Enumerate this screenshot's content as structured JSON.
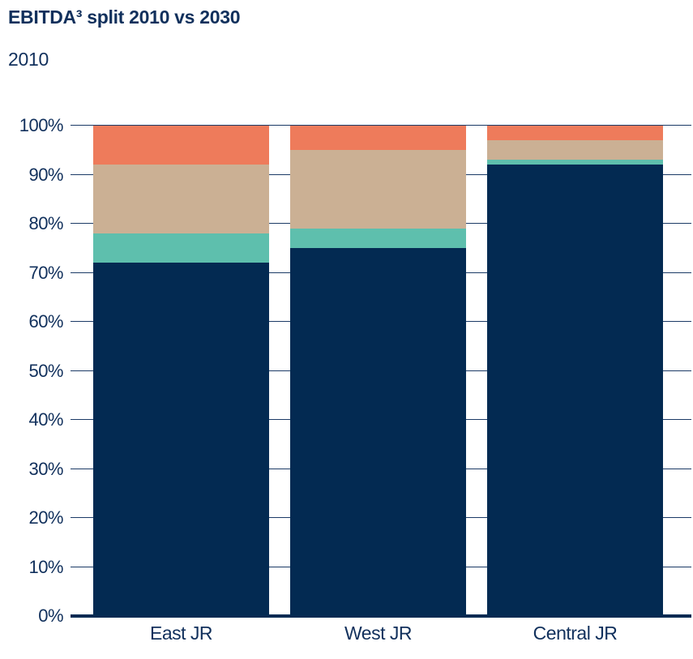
{
  "header": {
    "title": "EBITDA³ split 2010 vs 2030",
    "subtitle": "2010"
  },
  "colors": {
    "navy": "#032A52",
    "teal": "#5EBFAD",
    "tan": "#CBB094",
    "orange": "#EE7B5B",
    "text": "#11305C",
    "gridline": "#1B3A66",
    "axis": "#032A52"
  },
  "chart_data": {
    "type": "bar",
    "stacked": true,
    "title": "EBITDA³ split 2010 vs 2030",
    "subtitle": "2010",
    "categories": [
      "East JR",
      "West JR",
      "Central JR"
    ],
    "series": [
      {
        "name": "navy-segment",
        "color_key": "navy",
        "values": [
          72,
          75,
          92
        ]
      },
      {
        "name": "teal-segment",
        "color_key": "teal",
        "values": [
          6,
          4,
          1
        ]
      },
      {
        "name": "tan-segment",
        "color_key": "tan",
        "values": [
          14,
          16,
          4
        ]
      },
      {
        "name": "orange-segment",
        "color_key": "orange",
        "values": [
          8,
          5,
          3
        ]
      }
    ],
    "ylabel": "",
    "xlabel": "",
    "ylim": [
      0,
      100
    ],
    "y_ticks": [
      "0%",
      "10%",
      "20%",
      "30%",
      "40%",
      "50%",
      "60%",
      "70%",
      "80%",
      "90%",
      "100%"
    ],
    "grid": true,
    "legend": "none"
  }
}
